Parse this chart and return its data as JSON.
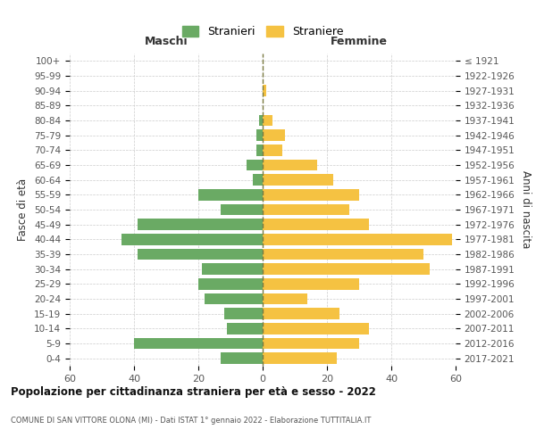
{
  "age_groups": [
    "100+",
    "95-99",
    "90-94",
    "85-89",
    "80-84",
    "75-79",
    "70-74",
    "65-69",
    "60-64",
    "55-59",
    "50-54",
    "45-49",
    "40-44",
    "35-39",
    "30-34",
    "25-29",
    "20-24",
    "15-19",
    "10-14",
    "5-9",
    "0-4"
  ],
  "birth_years": [
    "≤ 1921",
    "1922-1926",
    "1927-1931",
    "1932-1936",
    "1937-1941",
    "1942-1946",
    "1947-1951",
    "1952-1956",
    "1957-1961",
    "1962-1966",
    "1967-1971",
    "1972-1976",
    "1977-1981",
    "1982-1986",
    "1987-1991",
    "1992-1996",
    "1997-2001",
    "2002-2006",
    "2007-2011",
    "2012-2016",
    "2017-2021"
  ],
  "males": [
    0,
    0,
    0,
    0,
    1,
    2,
    2,
    5,
    3,
    20,
    13,
    39,
    44,
    39,
    19,
    20,
    18,
    12,
    11,
    40,
    13
  ],
  "females": [
    0,
    0,
    1,
    0,
    3,
    7,
    6,
    17,
    22,
    30,
    27,
    33,
    59,
    50,
    52,
    30,
    14,
    24,
    33,
    30,
    23
  ],
  "male_color": "#6aaa64",
  "female_color": "#f5c242",
  "title": "Popolazione per cittadinanza straniera per età e sesso - 2022",
  "subtitle": "COMUNE DI SAN VITTORE OLONA (MI) - Dati ISTAT 1° gennaio 2022 - Elaborazione TUTTITALIA.IT",
  "xlabel_left": "Maschi",
  "xlabel_right": "Femmine",
  "ylabel_left": "Fasce di età",
  "ylabel_right": "Anni di nascita",
  "legend_male": "Stranieri",
  "legend_female": "Straniere",
  "xlim": 60,
  "bg_color": "#ffffff",
  "grid_color": "#cccccc",
  "dashed_line_color": "#7a7a40"
}
